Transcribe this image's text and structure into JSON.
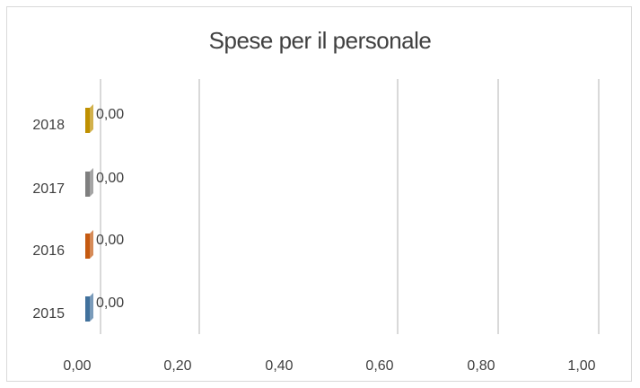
{
  "chart_data": {
    "type": "bar",
    "orientation": "horizontal",
    "title": "Spese per il personale",
    "categories": [
      "2015",
      "2016",
      "2017",
      "2018"
    ],
    "values": [
      0,
      0,
      0,
      0
    ],
    "data_labels": [
      "0,00",
      "0,00",
      "0,00",
      "0,00"
    ],
    "colors": [
      "#41719c",
      "#c55a11",
      "#7f7f7f",
      "#bf9000"
    ],
    "x_ticks": [
      "0,00",
      "0,20",
      "0,40",
      "0,60",
      "0,80",
      "1,00"
    ],
    "xlim": [
      0,
      1
    ],
    "grid": true,
    "legend": "none"
  }
}
